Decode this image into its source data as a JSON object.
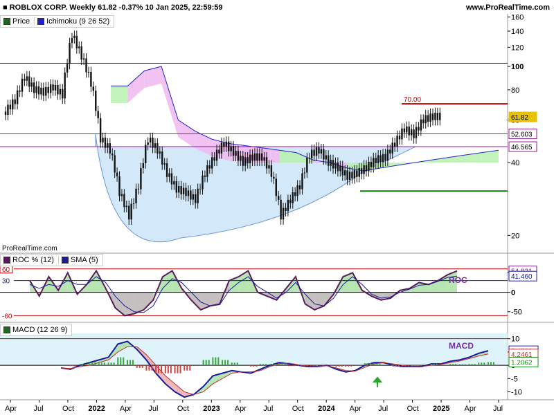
{
  "header": {
    "title": "ROBLOX CORP. Weekly 61.82 -0.37% 10 Jan 2025, 22:59:59",
    "site": "www.ProRealTime.com",
    "watermark": "ProRealTime.com"
  },
  "legends": {
    "price": [
      {
        "label": "Price",
        "color": "#1a6b1a"
      },
      {
        "label": "Ichimoku (9 26 52)",
        "color": "#2222cc"
      }
    ],
    "roc": [
      {
        "label": "ROC % (12)",
        "color": "#5a1a5a"
      },
      {
        "label": "SMA (5)",
        "color": "#1a1a9a"
      }
    ],
    "macd": [
      {
        "label": "MACD (12 26 9)",
        "color": "#1a6b1a"
      }
    ]
  },
  "colors": {
    "hline_red": "#c00000",
    "hline_purple": "#9a1a9a",
    "hline_green": "#0a7a0a",
    "cloud_bull": "#b8f0b0",
    "cloud_bear": "#f0b8f0",
    "bowl": "#cfe6f8",
    "candle": "#111111",
    "roc_label": "#7a2aa8",
    "macd_label": "#7a2aa8",
    "arrow": "#2aa82a"
  },
  "chart_data": [
    {
      "type": "line",
      "title": "ROBLOX CORP. Weekly",
      "scale": "log",
      "ylim": [
        17,
        165
      ],
      "yticks": [
        20,
        40,
        60,
        80,
        100,
        120,
        140,
        160
      ],
      "ytick_labels": [
        "20",
        "40",
        "60",
        "80",
        "100",
        "120",
        "140",
        "160"
      ],
      "xticks": [
        "Apr",
        "Jul",
        "Oct",
        "2022",
        "Apr",
        "Jul",
        "Oct",
        "2023",
        "Apr",
        "Jul",
        "Oct",
        "2024",
        "Apr",
        "Jul",
        "Oct",
        "2025",
        "Apr",
        "Jul"
      ],
      "x": [
        "2021-04",
        "2021-05",
        "2021-06",
        "2021-07",
        "2021-08",
        "2021-09",
        "2021-10",
        "2021-11",
        "2021-12",
        "2022-01",
        "2022-02",
        "2022-03",
        "2022-04",
        "2022-05",
        "2022-06",
        "2022-07",
        "2022-08",
        "2022-09",
        "2022-10",
        "2022-11",
        "2022-12",
        "2023-01",
        "2023-02",
        "2023-03",
        "2023-04",
        "2023-05",
        "2023-06",
        "2023-07",
        "2023-08",
        "2023-09",
        "2023-10",
        "2023-11",
        "2023-12",
        "2024-01",
        "2024-02",
        "2024-03",
        "2024-04",
        "2024-05",
        "2024-06",
        "2024-07",
        "2024-08",
        "2024-09",
        "2024-10",
        "2024-11",
        "2024-12",
        "2025-01"
      ],
      "series": [
        {
          "name": "Price",
          "values": [
            65,
            72,
            90,
            80,
            78,
            82,
            76,
            135,
            110,
            85,
            50,
            45,
            30,
            24,
            32,
            50,
            45,
            36,
            31,
            30,
            28,
            36,
            42,
            48,
            44,
            40,
            42,
            42,
            36,
            24,
            28,
            32,
            43,
            45,
            40,
            38,
            35,
            36,
            38,
            41,
            42,
            48,
            55,
            52,
            60,
            61.82
          ]
        }
      ],
      "price_tags": [
        {
          "value": "61.82",
          "color": "#e6c200"
        },
        {
          "value": "52.603",
          "color": "#9a1a9a"
        },
        {
          "value": "46.565",
          "color": "#9a1a9a"
        }
      ],
      "levels": [
        {
          "value": 103,
          "style": "red"
        },
        {
          "value": 70,
          "label": "70.00",
          "style": "red"
        },
        {
          "value": 52.603,
          "style": "purple"
        },
        {
          "value": 46.565,
          "style": "purple"
        },
        {
          "value": 30.5,
          "style": "green"
        }
      ],
      "ichimoku_span": [
        83,
        83,
        96,
        100,
        60,
        54,
        50,
        48,
        47,
        46,
        45,
        44,
        41,
        40,
        38,
        37,
        38,
        39,
        40,
        41,
        42,
        43,
        44,
        45
      ],
      "cloud_color_bear": [
        0,
        1,
        1,
        1,
        1,
        1,
        1,
        1,
        1,
        1,
        0,
        0,
        1,
        1,
        0,
        0,
        0,
        0,
        0,
        0,
        0,
        0,
        0,
        0
      ]
    },
    {
      "type": "line",
      "title": "ROC % (12)",
      "ylim": [
        -70,
        72
      ],
      "yticks": [
        -50,
        0,
        50
      ],
      "ytick_labels": [
        "-50",
        "0",
        "50"
      ],
      "levels": [
        60,
        30,
        -60
      ],
      "level_labels": [
        "60",
        "30",
        "-60"
      ],
      "label": "ROC",
      "series": [
        {
          "name": "ROC % (12)",
          "values": [
            30,
            -10,
            40,
            5,
            50,
            -5,
            20,
            55,
            10,
            -40,
            -60,
            -55,
            -45,
            -20,
            40,
            55,
            10,
            -20,
            -45,
            -35,
            -30,
            30,
            40,
            55,
            0,
            -10,
            -20,
            10,
            40,
            -30,
            -45,
            -35,
            -5,
            40,
            50,
            5,
            -10,
            -20,
            -15,
            5,
            10,
            25,
            20,
            30,
            45,
            54.821
          ]
        },
        {
          "name": "SMA (5)",
          "values": [
            20,
            10,
            20,
            15,
            30,
            20,
            20,
            40,
            25,
            -10,
            -35,
            -50,
            -52,
            -35,
            10,
            35,
            25,
            0,
            -25,
            -35,
            -32,
            5,
            25,
            40,
            15,
            0,
            -15,
            0,
            25,
            -5,
            -30,
            -35,
            -15,
            20,
            40,
            20,
            -5,
            -15,
            -12,
            0,
            8,
            18,
            20,
            28,
            38,
            41.46
          ]
        }
      ],
      "tags": [
        {
          "value": "54.821",
          "color": "#7a1a7a"
        },
        {
          "value": "41.460",
          "color": "#1a1a9a"
        }
      ]
    },
    {
      "type": "bar",
      "title": "MACD (12 26 9)",
      "ylim": [
        -13,
        12
      ],
      "yticks": [
        -10,
        -5,
        0,
        5,
        10
      ],
      "ytick_labels": [
        "-10",
        "-5",
        "0",
        "5",
        "10"
      ],
      "label": "MACD",
      "series": [
        {
          "name": "MACD",
          "values": [
            -1,
            -1.5,
            0,
            1,
            2,
            3,
            8,
            9,
            6,
            2,
            -3,
            -7,
            -10,
            -12,
            -11,
            -8,
            -4,
            -3,
            -2,
            -2.5,
            -3,
            -1.5,
            0,
            1,
            0.5,
            0,
            -0.5,
            -0.5,
            0,
            -1.5,
            -2.5,
            -2,
            0,
            1,
            1,
            0,
            -0.5,
            -0.5,
            -0.5,
            0.5,
            0.5,
            1.5,
            2,
            3,
            4.5,
            5.4523
          ]
        },
        {
          "name": "Signal",
          "values": [
            -1,
            -1.2,
            -0.5,
            0,
            1,
            2,
            5,
            7,
            7,
            4,
            0,
            -4,
            -7,
            -10,
            -11,
            -10,
            -7,
            -5,
            -3,
            -2.5,
            -2.5,
            -2,
            -0.5,
            0.5,
            0.8,
            0.2,
            -0.2,
            -0.4,
            -0.2,
            -1,
            -2,
            -2.2,
            -0.8,
            0.5,
            1,
            0.5,
            0,
            -0.4,
            -0.5,
            0,
            0.3,
            1,
            1.6,
            2.5,
            3.5,
            4.2461
          ]
        },
        {
          "name": "Histogram",
          "values": [
            0,
            -0.3,
            0.5,
            1,
            1,
            1,
            3,
            2,
            -1,
            -2,
            -3,
            -3,
            -3,
            -2,
            0,
            2,
            3,
            2,
            1,
            0,
            -0.5,
            0.5,
            0.5,
            0.5,
            -0.3,
            -0.2,
            -0.3,
            -0.1,
            0.2,
            -0.5,
            -0.5,
            0.2,
            0.8,
            0.5,
            0,
            -0.5,
            -0.5,
            -0.1,
            0,
            0.5,
            0.2,
            0.5,
            0.4,
            0.5,
            1,
            1.2062
          ]
        }
      ],
      "tags": [
        {
          "value": "5.4523",
          "color": "#1a1a9a"
        },
        {
          "value": "4.2461",
          "color": "#c03030"
        },
        {
          "value": "1.2062",
          "color": "#1a8a1a"
        }
      ]
    }
  ]
}
